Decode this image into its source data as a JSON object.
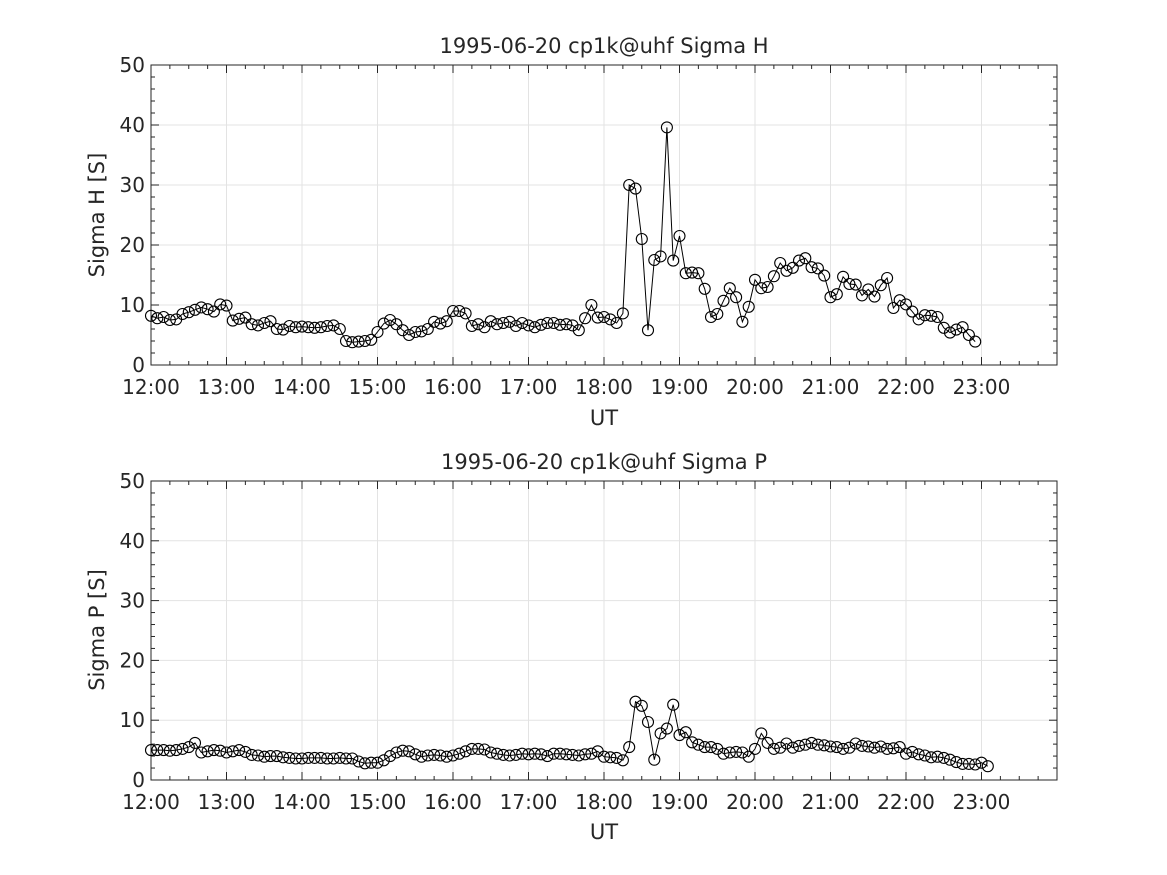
{
  "chart_data": [
    {
      "type": "line",
      "title": "1995-06-20  cp1k@uhf Sigma H",
      "xlabel": "UT",
      "ylabel": "Sigma H [S]",
      "xlim": [
        "12:00",
        "24:00"
      ],
      "ylim": [
        0,
        50
      ],
      "xticks": [
        "12:00",
        "13:00",
        "14:00",
        "15:00",
        "16:00",
        "17:00",
        "18:00",
        "19:00",
        "20:00",
        "21:00",
        "22:00",
        "23:00"
      ],
      "yticks": [
        "0",
        "10",
        "20",
        "30",
        "40",
        "50"
      ],
      "grid": true,
      "marker": "open-circle",
      "line_color": "#000000",
      "time_step_minutes": 5,
      "series": [
        {
          "x_start": "12:00",
          "values": [
            8.2,
            7.8,
            8.0,
            7.5,
            7.6,
            8.5,
            8.8,
            9.2,
            9.6,
            9.3,
            8.9,
            10.1,
            9.9,
            7.4,
            7.7,
            7.9,
            6.8,
            6.6,
            7.0,
            7.3,
            6.0,
            5.9,
            6.5,
            6.3,
            6.4,
            6.3,
            6.2,
            6.3,
            6.5,
            6.6,
            6.0,
            4.0,
            3.8,
            3.9,
            4.0,
            4.2,
            5.5,
            6.9,
            7.5,
            6.8,
            5.8,
            5.0,
            5.5,
            5.6,
            6.0,
            7.2,
            6.9,
            7.3,
            9.0,
            9.0,
            8.6,
            6.5,
            6.8,
            6.3,
            7.3,
            6.8,
            7.0,
            7.2,
            6.5,
            7.0,
            6.6,
            6.3,
            6.7,
            7.0,
            7.0,
            6.7,
            6.8,
            6.6,
            5.8,
            7.8,
            10.0,
            7.9,
            8.0,
            7.6,
            7.0,
            8.6,
            30.0,
            29.4,
            21.0,
            5.8,
            17.5,
            18.1,
            39.6,
            17.4,
            21.5,
            15.3,
            15.4,
            15.3,
            12.7,
            8.0,
            8.5,
            10.7,
            12.8,
            11.3,
            7.2,
            9.7,
            14.2,
            12.8,
            13.0,
            14.8,
            17.0,
            15.7,
            16.2,
            17.4,
            17.8,
            16.3,
            16.1,
            14.9,
            11.3,
            11.8,
            14.7,
            13.5,
            13.4,
            11.6,
            12.6,
            11.4,
            13.3,
            14.5,
            9.5,
            10.8,
            10.1,
            8.9,
            7.6,
            8.3,
            8.2,
            8.0,
            6.2,
            5.4,
            5.9,
            6.3,
            5.0,
            3.9
          ]
        }
      ]
    },
    {
      "type": "line",
      "title": "1995-06-20  cp1k@uhf Sigma P",
      "xlabel": "UT",
      "ylabel": "Sigma P [S]",
      "xlim": [
        "12:00",
        "24:00"
      ],
      "ylim": [
        0,
        50
      ],
      "xticks": [
        "12:00",
        "13:00",
        "14:00",
        "15:00",
        "16:00",
        "17:00",
        "18:00",
        "19:00",
        "20:00",
        "21:00",
        "22:00",
        "23:00"
      ],
      "yticks": [
        "0",
        "10",
        "20",
        "30",
        "40",
        "50"
      ],
      "grid": true,
      "marker": "open-circle",
      "line_color": "#000000",
      "time_step_minutes": 5,
      "series": [
        {
          "x_start": "12:00",
          "values": [
            5.0,
            5.0,
            5.0,
            4.9,
            5.0,
            5.2,
            5.5,
            6.2,
            4.6,
            4.8,
            5.0,
            4.9,
            4.6,
            4.8,
            5.0,
            4.7,
            4.2,
            4.1,
            3.9,
            4.0,
            4.0,
            3.8,
            3.7,
            3.6,
            3.6,
            3.7,
            3.7,
            3.7,
            3.6,
            3.6,
            3.7,
            3.6,
            3.6,
            3.1,
            2.8,
            2.9,
            2.9,
            3.3,
            4.0,
            4.6,
            4.9,
            4.8,
            4.3,
            3.9,
            4.1,
            4.2,
            4.1,
            3.9,
            4.1,
            4.4,
            4.8,
            5.2,
            5.2,
            5.1,
            4.6,
            4.4,
            4.2,
            4.1,
            4.2,
            4.4,
            4.3,
            4.4,
            4.3,
            4.0,
            4.4,
            4.4,
            4.3,
            4.2,
            4.1,
            4.3,
            4.4,
            4.8,
            3.9,
            3.8,
            3.7,
            3.3,
            5.5,
            13.1,
            12.4,
            9.7,
            3.4,
            7.8,
            8.6,
            12.6,
            7.5,
            8.0,
            6.3,
            5.9,
            5.5,
            5.5,
            5.2,
            4.4,
            4.6,
            4.7,
            4.6,
            3.9,
            5.2,
            7.8,
            6.2,
            5.2,
            5.4,
            6.1,
            5.4,
            5.7,
            5.9,
            6.2,
            5.9,
            5.8,
            5.6,
            5.5,
            5.2,
            5.4,
            6.1,
            5.7,
            5.6,
            5.4,
            5.6,
            5.2,
            5.3,
            5.5,
            4.4,
            4.7,
            4.3,
            4.1,
            3.8,
            3.9,
            3.7,
            3.4,
            3.0,
            2.7,
            2.7,
            2.6,
            2.9,
            2.3
          ]
        }
      ]
    }
  ]
}
